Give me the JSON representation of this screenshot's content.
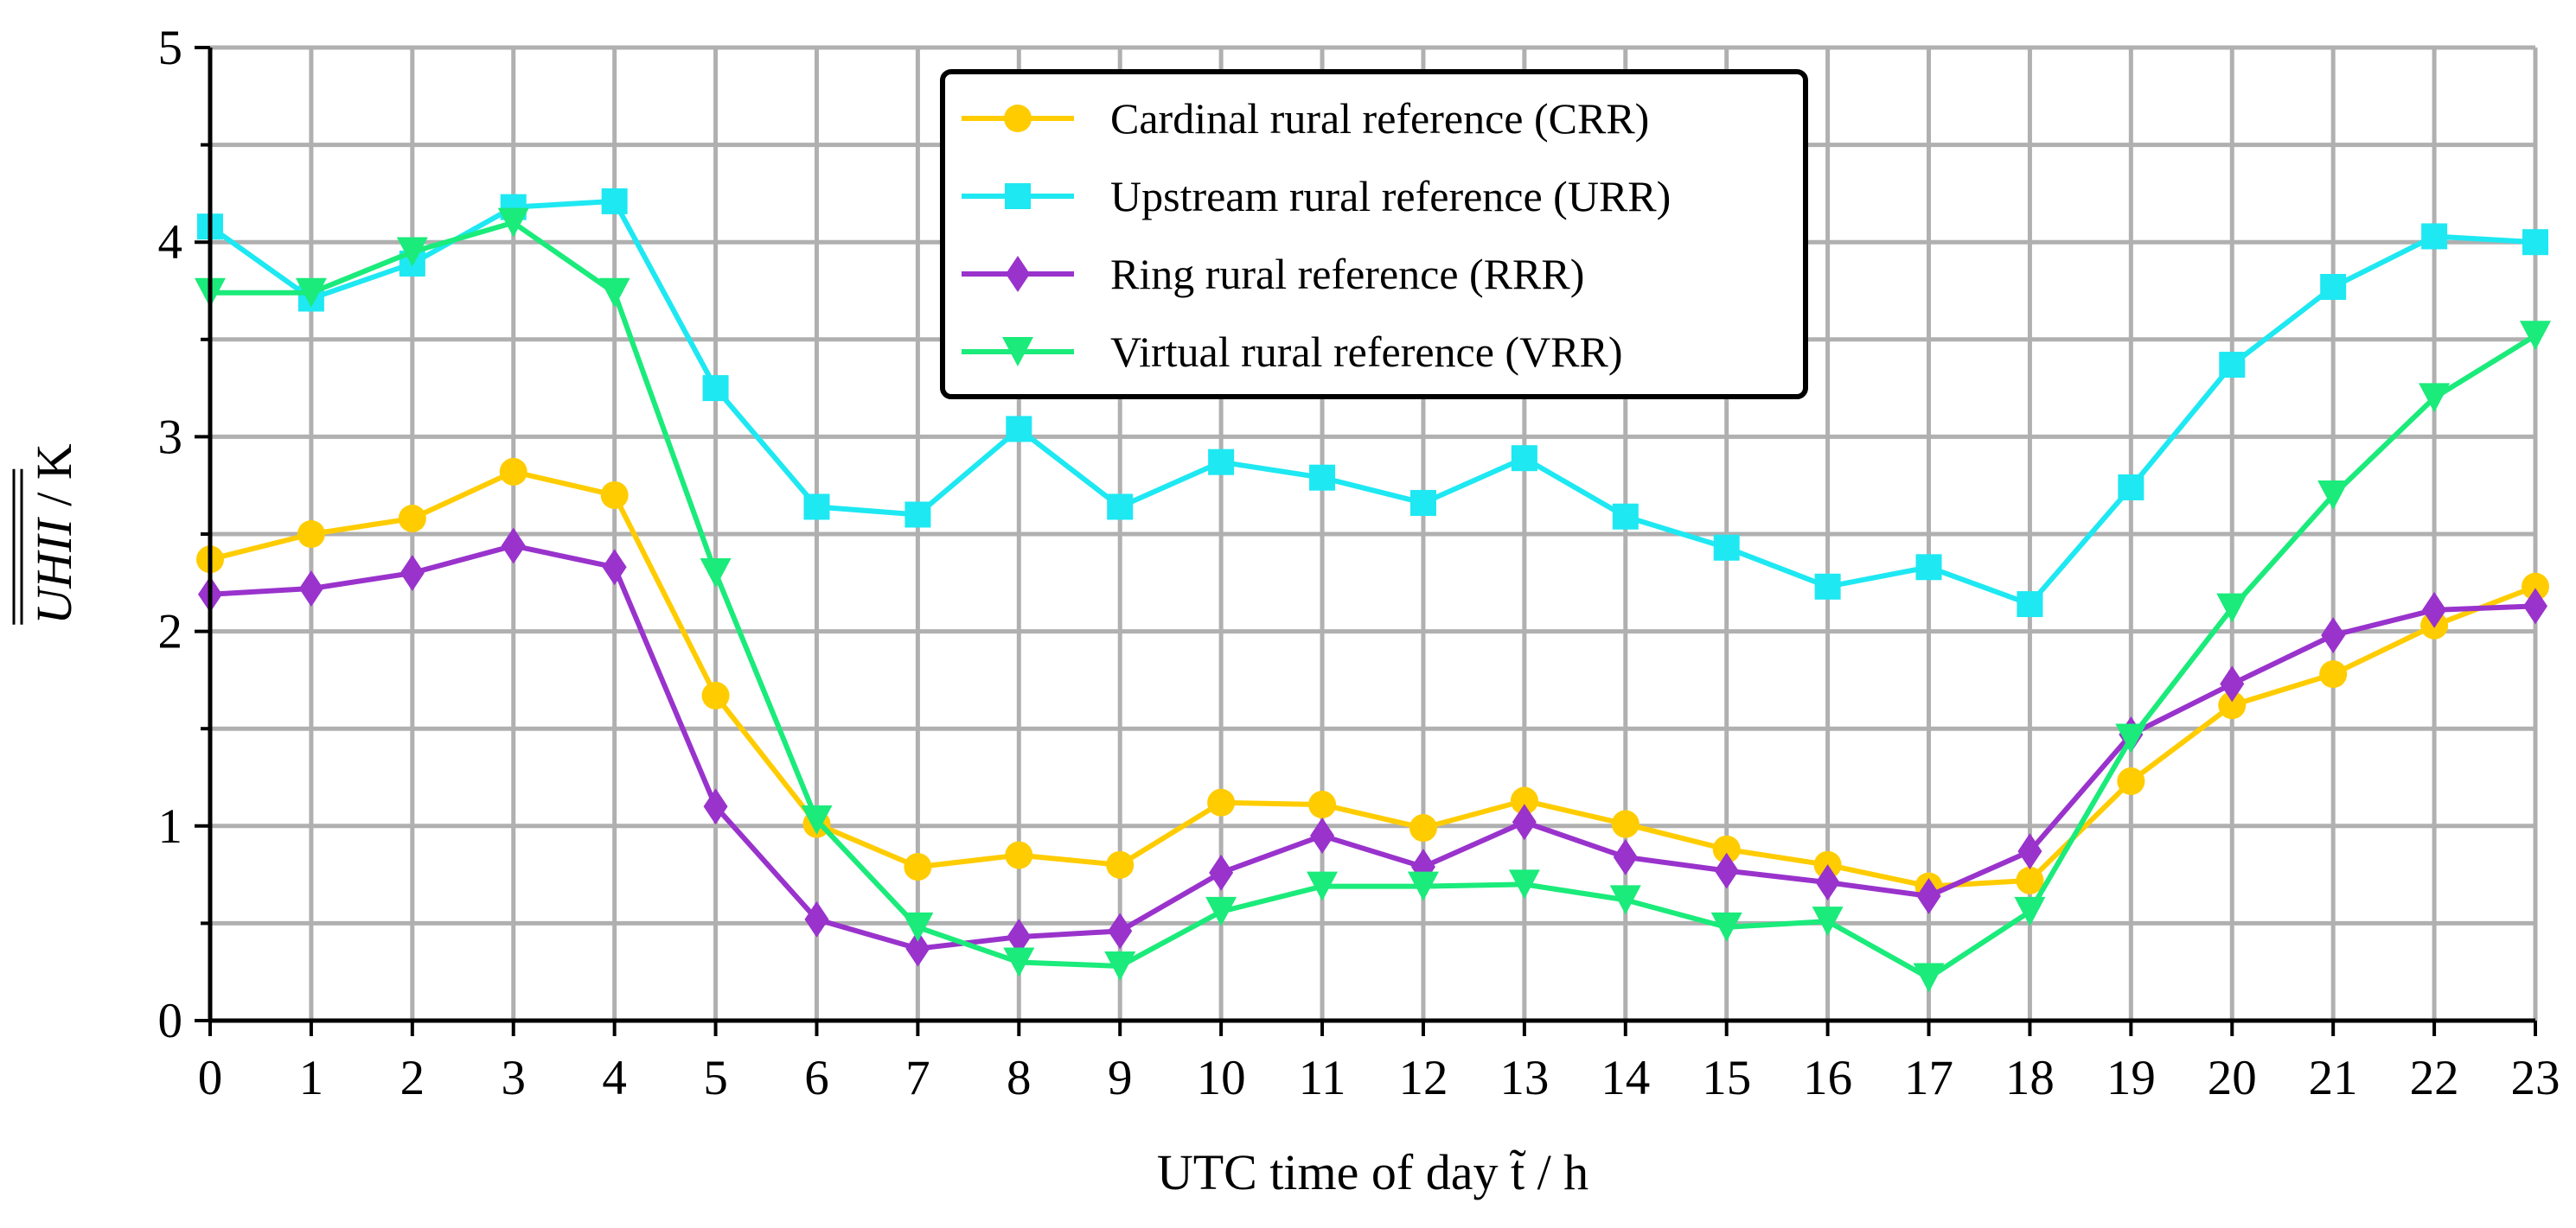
{
  "chart_data": {
    "type": "line",
    "title": "",
    "xlabel": "UTC time of day t̃ / h",
    "ylabel": "UHII / K",
    "ylabel_var": "UHII",
    "ylabel_unit": "/ K",
    "x": [
      0,
      1,
      2,
      3,
      4,
      5,
      6,
      7,
      8,
      9,
      10,
      11,
      12,
      13,
      14,
      15,
      16,
      17,
      18,
      19,
      20,
      21,
      22,
      23
    ],
    "xlim": [
      0,
      23
    ],
    "ylim": [
      0,
      5
    ],
    "xticks": [
      "0",
      "1",
      "2",
      "3",
      "4",
      "5",
      "6",
      "7",
      "8",
      "9",
      "10",
      "11",
      "12",
      "13",
      "14",
      "15",
      "16",
      "17",
      "18",
      "19",
      "20",
      "21",
      "22",
      "23"
    ],
    "yticks": [
      "0",
      "1",
      "2",
      "3",
      "4",
      "5"
    ],
    "grid": true,
    "legend_position": "top-center",
    "series": [
      {
        "name": "Cardinal rural reference (CRR)",
        "color": "#FFCC00",
        "marker": "circle",
        "values": [
          2.37,
          2.5,
          2.58,
          2.82,
          2.7,
          1.67,
          1.01,
          0.79,
          0.85,
          0.8,
          1.12,
          1.11,
          0.99,
          1.13,
          1.01,
          0.88,
          0.8,
          0.69,
          0.72,
          1.23,
          1.62,
          1.78,
          2.03,
          2.23
        ]
      },
      {
        "name": "Upstream rural reference (URR)",
        "color": "#1EE8F2",
        "marker": "square",
        "values": [
          4.08,
          3.71,
          3.89,
          4.18,
          4.21,
          3.25,
          2.64,
          2.6,
          3.04,
          2.64,
          2.87,
          2.79,
          2.66,
          2.89,
          2.59,
          2.43,
          2.23,
          2.33,
          2.14,
          2.74,
          3.37,
          3.77,
          4.03,
          4.0
        ]
      },
      {
        "name": "Ring rural reference (RRR)",
        "color": "#9933CC",
        "marker": "diamond",
        "values": [
          2.19,
          2.22,
          2.3,
          2.44,
          2.33,
          1.1,
          0.52,
          0.37,
          0.43,
          0.46,
          0.76,
          0.95,
          0.79,
          1.02,
          0.84,
          0.77,
          0.71,
          0.64,
          0.87,
          1.47,
          1.73,
          1.98,
          2.11,
          2.13
        ]
      },
      {
        "name": "Virtual rural reference (VRR)",
        "color": "#1AEB7A",
        "marker": "triangle-down",
        "values": [
          3.74,
          3.74,
          3.95,
          4.1,
          3.74,
          2.3,
          1.03,
          0.48,
          0.3,
          0.28,
          0.56,
          0.69,
          0.69,
          0.7,
          0.62,
          0.48,
          0.51,
          0.22,
          0.56,
          1.45,
          2.12,
          2.7,
          3.2,
          3.52
        ]
      }
    ]
  }
}
